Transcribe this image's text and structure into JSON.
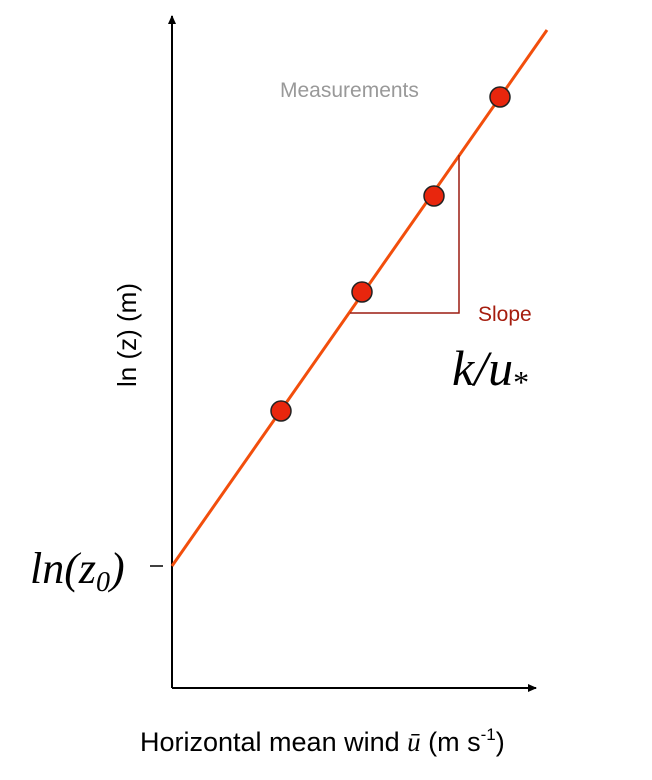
{
  "labels": {
    "measurements": "Measurements",
    "slope": "Slope",
    "slope_formula": {
      "main": "k/u",
      "sub": "*"
    },
    "intercept": {
      "main": "ln(z",
      "sub": "0",
      "close": ")"
    },
    "y_axis": "ln (z) (m)",
    "x_axis": {
      "text": "Horizontal mean wind ",
      "symbol": "ū",
      "unit": " (m s",
      "sup": "-1",
      "close": ")"
    }
  }
}
